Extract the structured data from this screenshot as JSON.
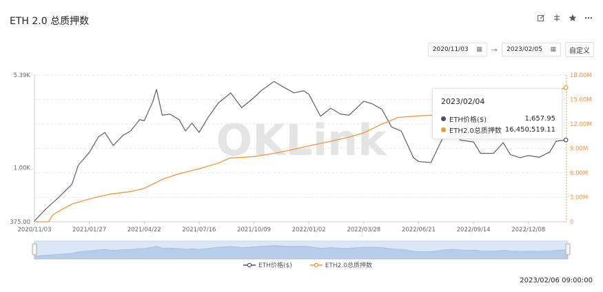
{
  "header": {
    "title": "ETH 2.0 总质押数"
  },
  "toolbar": {
    "icons": [
      "edit-icon",
      "split-icon",
      "star-icon",
      "more-icon"
    ]
  },
  "date_range": {
    "start": "2020/11/03",
    "end": "2023/02/05",
    "custom_label": "自定义"
  },
  "tooltip": {
    "date": "2023/02/04",
    "rows": [
      {
        "name": "ETH价格($)",
        "value": "1,657.95",
        "color": "#4a4f62"
      },
      {
        "name": "ETH2.0总质押数",
        "value": "16,450,519.11",
        "color": "#f0963c"
      }
    ]
  },
  "watermark": "OKLink",
  "timestamp": "2023/02/06 09:00:00",
  "chart_data": {
    "type": "line",
    "x_tick_labels": [
      "2020/11/03",
      "2021/01/27",
      "2021/04/22",
      "2021/07/16",
      "2021/10/09",
      "2022/01/02",
      "2022/03/28",
      "2022/06/21",
      "2022/09/14",
      "2022/12/08"
    ],
    "left_axis": {
      "scale": "log",
      "tick_labels": [
        "5.39K",
        "1.00K",
        "375.00"
      ],
      "range": [
        375,
        5390
      ]
    },
    "right_axis": {
      "tick_labels": [
        "18.00M",
        "15.00M",
        "12.00M",
        "9.00M",
        "6.00M",
        "3.00M",
        "0"
      ],
      "range": [
        0,
        18000000
      ]
    },
    "grid": "horizontal dashed",
    "legend_position": "bottom",
    "series": [
      {
        "name": "ETH价格($)",
        "axis": "left",
        "color": "#4a4f62",
        "points": [
          [
            "2020/11/03",
            380
          ],
          [
            "2020/11/20",
            470
          ],
          [
            "2020/12/10",
            580
          ],
          [
            "2020/12/31",
            740
          ],
          [
            "2021/01/10",
            1050
          ],
          [
            "2021/01/27",
            1320
          ],
          [
            "2021/02/10",
            1750
          ],
          [
            "2021/02/20",
            1900
          ],
          [
            "2021/03/05",
            1500
          ],
          [
            "2021/03/20",
            1800
          ],
          [
            "2021/04/01",
            1950
          ],
          [
            "2021/04/15",
            2400
          ],
          [
            "2021/04/22",
            2350
          ],
          [
            "2021/05/05",
            3300
          ],
          [
            "2021/05/11",
            4150
          ],
          [
            "2021/05/20",
            2600
          ],
          [
            "2021/06/01",
            2650
          ],
          [
            "2021/06/15",
            2400
          ],
          [
            "2021/06/25",
            1950
          ],
          [
            "2021/07/05",
            2250
          ],
          [
            "2021/07/16",
            1900
          ],
          [
            "2021/07/30",
            2500
          ],
          [
            "2021/08/15",
            3250
          ],
          [
            "2021/09/03",
            3900
          ],
          [
            "2021/09/20",
            2980
          ],
          [
            "2021/10/09",
            3580
          ],
          [
            "2021/10/20",
            4050
          ],
          [
            "2021/11/09",
            4800
          ],
          [
            "2021/11/25",
            4300
          ],
          [
            "2021/12/10",
            3900
          ],
          [
            "2021/12/25",
            4050
          ],
          [
            "2022/01/02",
            3800
          ],
          [
            "2022/01/20",
            2550
          ],
          [
            "2022/02/05",
            2950
          ],
          [
            "2022/02/20",
            2650
          ],
          [
            "2022/03/05",
            2600
          ],
          [
            "2022/03/28",
            3350
          ],
          [
            "2022/04/10",
            3200
          ],
          [
            "2022/04/25",
            2900
          ],
          [
            "2022/05/10",
            2100
          ],
          [
            "2022/05/25",
            1950
          ],
          [
            "2022/06/13",
            1200
          ],
          [
            "2022/06/21",
            1120
          ],
          [
            "2022/07/10",
            1100
          ],
          [
            "2022/07/28",
            1700
          ],
          [
            "2022/08/13",
            1990
          ],
          [
            "2022/08/25",
            1650
          ],
          [
            "2022/09/14",
            1600
          ],
          [
            "2022/09/25",
            1300
          ],
          [
            "2022/10/15",
            1300
          ],
          [
            "2022/10/30",
            1580
          ],
          [
            "2022/11/10",
            1270
          ],
          [
            "2022/11/25",
            1200
          ],
          [
            "2022/12/08",
            1250
          ],
          [
            "2022/12/25",
            1210
          ],
          [
            "2023/01/10",
            1330
          ],
          [
            "2023/01/20",
            1620
          ],
          [
            "2023/02/04",
            1658
          ]
        ]
      },
      {
        "name": "ETH2.0总质押数",
        "axis": "right",
        "color": "#f0963c",
        "points": [
          [
            "2020/11/03",
            0
          ],
          [
            "2020/11/25",
            0
          ],
          [
            "2020/12/01",
            800000
          ],
          [
            "2020/12/15",
            1500000
          ],
          [
            "2021/01/01",
            2200000
          ],
          [
            "2021/01/27",
            2800000
          ],
          [
            "2021/03/01",
            3400000
          ],
          [
            "2021/04/01",
            3700000
          ],
          [
            "2021/04/22",
            4100000
          ],
          [
            "2021/05/20",
            5200000
          ],
          [
            "2021/06/15",
            5900000
          ],
          [
            "2021/07/16",
            6500000
          ],
          [
            "2021/08/15",
            7200000
          ],
          [
            "2021/09/01",
            7800000
          ],
          [
            "2021/10/09",
            8000000
          ],
          [
            "2021/11/10",
            8400000
          ],
          [
            "2021/12/10",
            8900000
          ],
          [
            "2022/01/02",
            9300000
          ],
          [
            "2022/02/01",
            9800000
          ],
          [
            "2022/03/01",
            10300000
          ],
          [
            "2022/03/28",
            10900000
          ],
          [
            "2022/04/20",
            11800000
          ],
          [
            "2022/05/20",
            12800000
          ],
          [
            "2022/06/21",
            13000000
          ],
          [
            "2022/07/20",
            13100000
          ],
          [
            "2022/08/20",
            13400000
          ],
          [
            "2022/09/14",
            13700000
          ],
          [
            "2022/10/15",
            14200000
          ],
          [
            "2022/11/15",
            15000000
          ],
          [
            "2022/12/08",
            15400000
          ],
          [
            "2023/01/10",
            15900000
          ],
          [
            "2023/02/04",
            16450519
          ]
        ]
      }
    ]
  }
}
